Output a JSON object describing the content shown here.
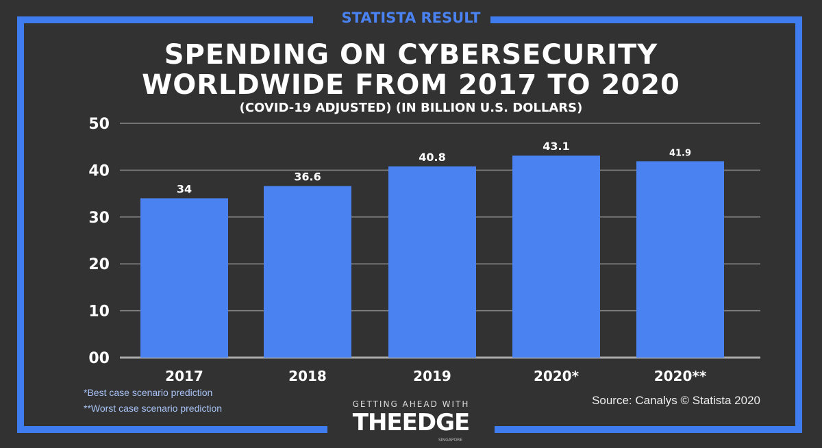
{
  "badge": "STATISTA RESULT",
  "colors": {
    "background": "#323232",
    "accent": "#3f7cf0",
    "bar": "#4a82f2"
  },
  "chart_data": {
    "type": "bar",
    "title": "SPENDING ON CYBERSECURITY WORLDWIDE FROM 2017 TO 2020",
    "title_line1": "SPENDING ON CYBERSECURITY",
    "title_line2": "WORLDWIDE FROM 2017 TO 2020",
    "subtitle": "(COVID-19 ADJUSTED) (IN BILLION U.S. DOLLARS)",
    "categories": [
      "2017",
      "2018",
      "2019",
      "2020*",
      "2020**"
    ],
    "values": [
      34,
      36.6,
      40.8,
      43.1,
      41.9
    ],
    "data_labels": [
      "34",
      "36.6",
      "40.8",
      "43.1",
      "41.9"
    ],
    "ylim": [
      0,
      50
    ],
    "yticks": [
      "00",
      "10",
      "20",
      "30",
      "40",
      "50"
    ],
    "grid": true,
    "xlabel": "",
    "ylabel": ""
  },
  "footnotes": [
    "*Best case scenario prediction",
    "**Worst case scenario prediction"
  ],
  "source": "Source: Canalys © Statista 2020",
  "logo": {
    "tagline": "GETTING AHEAD WITH",
    "name": "THEEDGE",
    "sub": "SINGAPORE"
  }
}
